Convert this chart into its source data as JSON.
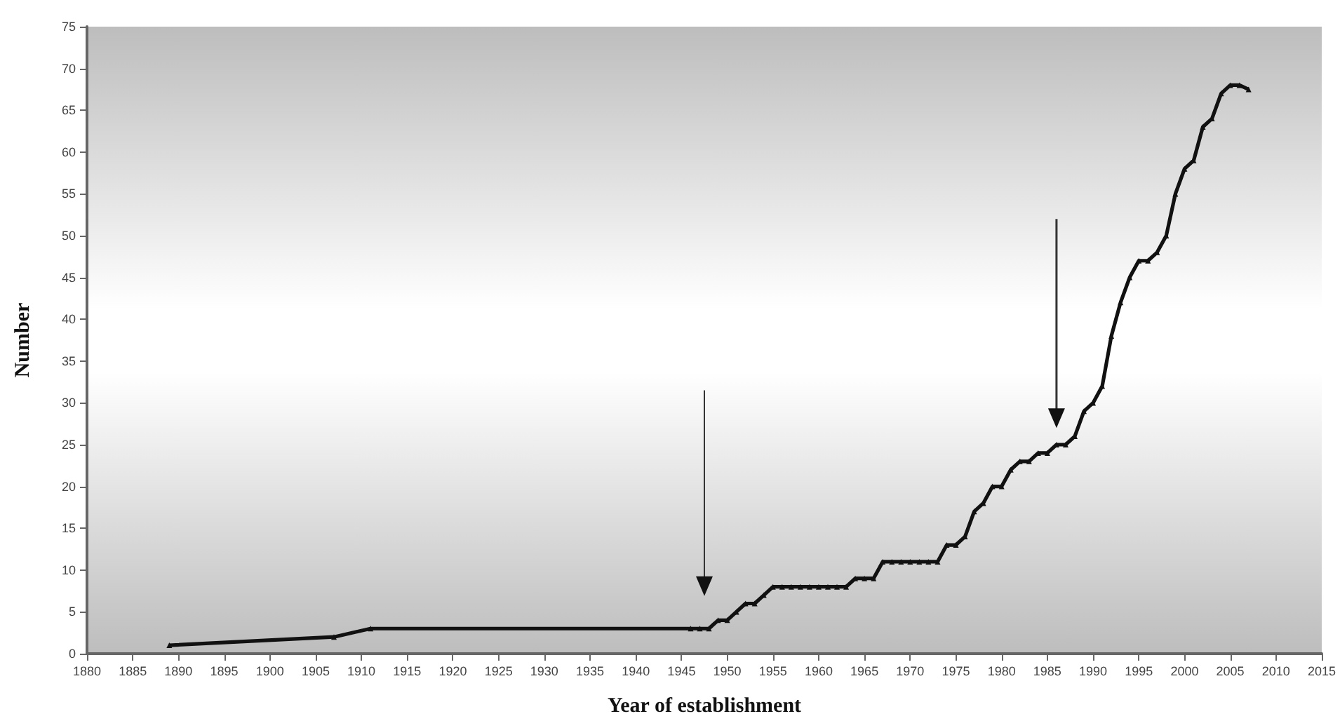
{
  "chart_data": {
    "type": "line",
    "xlabel": "Year of establishment",
    "ylabel": "Number",
    "xlim": [
      1880,
      2015
    ],
    "xticks": [
      1880,
      1885,
      1890,
      1895,
      1900,
      1905,
      1910,
      1915,
      1920,
      1925,
      1930,
      1935,
      1940,
      1945,
      1950,
      1955,
      1960,
      1965,
      1970,
      1975,
      1980,
      1985,
      1990,
      1995,
      2000,
      2005,
      2010,
      2015
    ],
    "ylim": [
      0,
      75
    ],
    "yticks": [
      0,
      5,
      10,
      15,
      20,
      25,
      30,
      35,
      40,
      45,
      50,
      55,
      60,
      65,
      70,
      75
    ],
    "grid": false,
    "marker": "triangle",
    "line_style": "solid",
    "series": [
      {
        "color": "#111111",
        "x": [
          1889,
          1907,
          1911,
          1946,
          1947,
          1948,
          1949,
          1950,
          1951,
          1952,
          1953,
          1954,
          1955,
          1956,
          1957,
          1958,
          1959,
          1960,
          1961,
          1962,
          1963,
          1964,
          1965,
          1966,
          1967,
          1968,
          1969,
          1970,
          1971,
          1972,
          1973,
          1974,
          1975,
          1976,
          1977,
          1978,
          1979,
          1980,
          1981,
          1982,
          1983,
          1984,
          1985,
          1986,
          1987,
          1988,
          1989,
          1990,
          1991,
          1992,
          1993,
          1994,
          1995,
          1996,
          1997,
          1998,
          1999,
          2000,
          2001,
          2002,
          2003,
          2004,
          2005,
          2006,
          2007
        ],
        "values": [
          1,
          2,
          3,
          3,
          3,
          3,
          4,
          4,
          5,
          6,
          6,
          7,
          8,
          8,
          8,
          8,
          8,
          8,
          8,
          8,
          8,
          9,
          9,
          9,
          11,
          11,
          11,
          11,
          11,
          11,
          11,
          13,
          13,
          14,
          17,
          18,
          20,
          20,
          22,
          23,
          23,
          24,
          24,
          25,
          25,
          26,
          29,
          30,
          32,
          38,
          42,
          45,
          47,
          47,
          48,
          50,
          55,
          58,
          59,
          63,
          64,
          67,
          68,
          68,
          67.5
        ]
      }
    ]
  }
}
